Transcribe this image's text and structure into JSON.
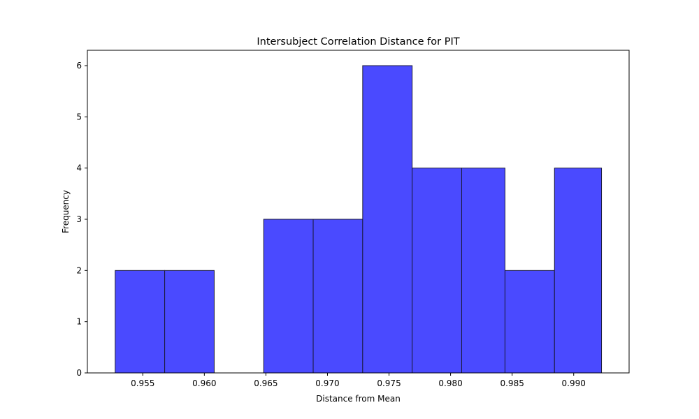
{
  "chart_data": {
    "type": "bar",
    "title": "Intersubject Correlation Distance for PIT",
    "xlabel": "Distance from Mean",
    "ylabel": "Frequency",
    "bin_edges": [
      0.95276,
      0.95678,
      0.9608,
      0.96482,
      0.96884,
      0.97286,
      0.97688,
      0.9809,
      0.98442,
      0.98844,
      0.99226
    ],
    "values": [
      2,
      2,
      0,
      3,
      3,
      6,
      4,
      4,
      2,
      4
    ],
    "xlim": [
      0.9505,
      0.9945
    ],
    "ylim": [
      0,
      6.3
    ],
    "xticks": [
      0.955,
      0.96,
      0.965,
      0.97,
      0.975,
      0.98,
      0.985,
      0.99
    ],
    "xtick_labels": [
      "0.955",
      "0.960",
      "0.965",
      "0.970",
      "0.975",
      "0.980",
      "0.985",
      "0.990"
    ],
    "yticks": [
      0,
      1,
      2,
      3,
      4,
      5,
      6
    ],
    "ytick_labels": [
      "0",
      "1",
      "2",
      "3",
      "4",
      "5",
      "6"
    ],
    "bar_color": "#4a4aff",
    "edge_color": "#1a1a3a",
    "grid": false,
    "legend": "none"
  }
}
